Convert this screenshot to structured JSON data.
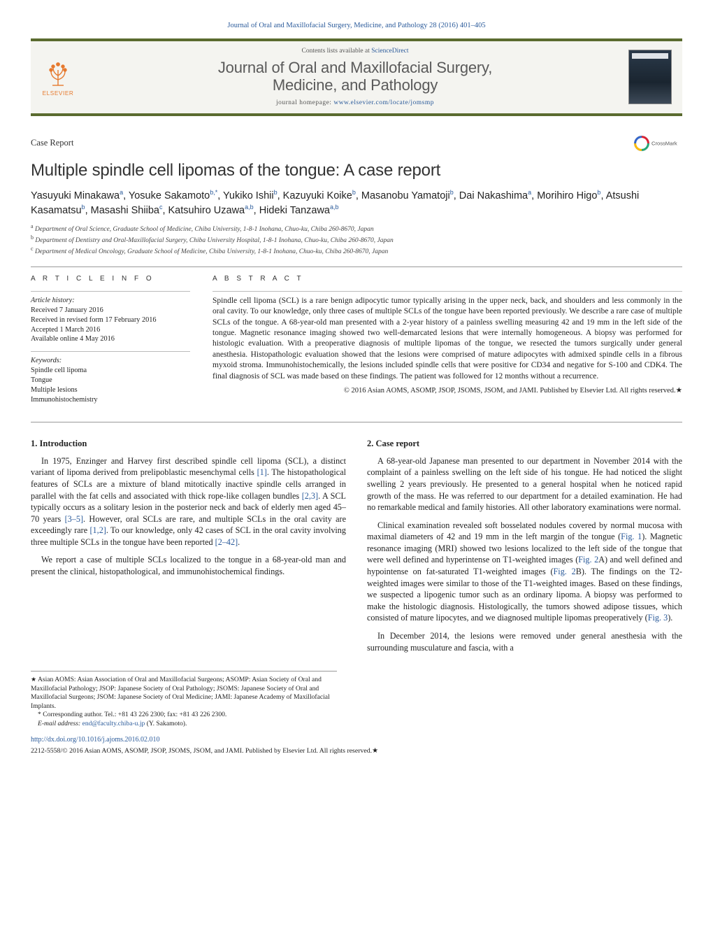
{
  "running_head": "Journal of Oral and Maxillofacial Surgery, Medicine, and Pathology 28 (2016) 401–405",
  "masthead": {
    "contents_prefix": "Contents lists available at ",
    "contents_link": "ScienceDirect",
    "journal_name_1": "Journal of Oral and Maxillofacial Surgery,",
    "journal_name_2": "Medicine, and Pathology",
    "homepage_prefix": "journal homepage: ",
    "homepage_url": "www.elsevier.com/locate/jomsmp",
    "elsevier": "ELSEVIER"
  },
  "article_type": "Case Report",
  "crossmark": "CrossMark",
  "title": "Multiple spindle cell lipomas of the tongue: A case report",
  "authors_html": "Yasuyuki Minakawa<sup>a</sup>, Yosuke Sakamoto<sup>b,*</sup>, Yukiko Ishii<sup>b</sup>, Kazuyuki Koike<sup>b</sup>, Masanobu Yamatoji<sup>b</sup>, Dai Nakashima<sup>a</sup>, Morihiro Higo<sup>b</sup>, Atsushi Kasamatsu<sup>b</sup>, Masashi Shiiba<sup>c</sup>, Katsuhiro Uzawa<sup>a,b</sup>, Hideki Tanzawa<sup>a,b</sup>",
  "affiliations": {
    "a": "Department of Oral Science, Graduate School of Medicine, Chiba University, 1-8-1 Inohana, Chuo-ku, Chiba 260-8670, Japan",
    "b": "Department of Dentistry and Oral-Maxillofacial Surgery, Chiba University Hospital, 1-8-1 Inohana, Chuo-ku, Chiba 260-8670, Japan",
    "c": "Department of Medical Oncology, Graduate School of Medicine, Chiba University, 1-8-1 Inohana, Chuo-ku, Chiba 260-8670, Japan"
  },
  "info": {
    "head": "A R T I C L E   I N F O",
    "history_label": "Article history:",
    "received": "Received 7 January 2016",
    "revised": "Received in revised form 17 February 2016",
    "accepted": "Accepted 1 March 2016",
    "online": "Available online 4 May 2016",
    "keywords_label": "Keywords:",
    "keywords": [
      "Spindle cell lipoma",
      "Tongue",
      "Multiple lesions",
      "Immunohistochemistry"
    ]
  },
  "abstract": {
    "head": "A B S T R A C T",
    "body": "Spindle cell lipoma (SCL) is a rare benign adipocytic tumor typically arising in the upper neck, back, and shoulders and less commonly in the oral cavity. To our knowledge, only three cases of multiple SCLs of the tongue have been reported previously. We describe a rare case of multiple SCLs of the tongue. A 68-year-old man presented with a 2-year history of a painless swelling measuring 42 and 19 mm in the left side of the tongue. Magnetic resonance imaging showed two well-demarcated lesions that were internally homogeneous. A biopsy was performed for histologic evaluation. With a preoperative diagnosis of multiple lipomas of the tongue, we resected the tumors surgically under general anesthesia. Histopathologic evaluation showed that the lesions were comprised of mature adipocytes with admixed spindle cells in a fibrous myxoid stroma. Immunohistochemically, the lesions included spindle cells that were positive for CD34 and negative for S-100 and CDK4. The final diagnosis of SCL was made based on these findings. The patient was followed for 12 months without a recurrence.",
    "copyright": "© 2016 Asian AOMS, ASOMP, JSOP, JSOMS, JSOM, and JAMI. Published by Elsevier Ltd. All rights reserved.★"
  },
  "sections": {
    "intro_head": "1.  Introduction",
    "intro_p1_a": "In 1975, Enzinger and Harvey first described spindle cell lipoma (SCL), a distinct variant of lipoma derived from prelipoblastic mesenchymal cells ",
    "intro_cite1": "[1]",
    "intro_p1_b": ". The histopathological features of SCLs are a mixture of bland mitotically inactive spindle cells arranged in parallel with the fat cells and associated with thick rope-like collagen bundles ",
    "intro_cite2": "[2,3]",
    "intro_p1_c": ". A SCL typically occurs as a solitary lesion in the posterior neck and back of elderly men aged 45–70 years ",
    "intro_cite3": "[3–5]",
    "intro_p1_d": ". However, oral SCLs are rare, and multiple SCLs in the oral cavity are exceedingly rare ",
    "intro_cite4": "[1,2]",
    "intro_p1_e": ". To our knowledge, only 42 cases of SCL in the oral cavity involving three multiple SCLs in the tongue have been reported ",
    "intro_cite5": "[2–42]",
    "intro_p1_f": ".",
    "intro_p2": "We report a case of multiple SCLs localized to the tongue in a 68-year-old man and present the clinical, histopathological, and immunohistochemical findings.",
    "case_head": "2.  Case report",
    "case_p1": "A 68-year-old Japanese man presented to our department in November 2014 with the complaint of a painless swelling on the left side of his tongue. He had noticed the slight swelling 2 years previously. He presented to a general hospital when he noticed rapid growth of the mass. He was referred to our department for a detailed examination. He had no remarkable medical and family histories. All other laboratory examinations were normal.",
    "case_p2_a": "Clinical examination revealed soft bosselated nodules covered by normal mucosa with maximal diameters of 42 and 19 mm in the left margin of the tongue (",
    "case_fig1": "Fig. 1",
    "case_p2_b": "). Magnetic resonance imaging (MRI) showed two lesions localized to the left side of the tongue that were well defined and hyperintense on T1-weighted images (",
    "case_fig2a": "Fig. 2",
    "case_p2_c": "A) and well defined and hypointense on fat-saturated T1-weighted images (",
    "case_fig2b": "Fig. 2",
    "case_p2_d": "B). The findings on the T2-weighted images were similar to those of the T1-weighted images. Based on these findings, we suspected a lipogenic tumor such as an ordinary lipoma. A biopsy was performed to make the histologic diagnosis. Histologically, the tumors showed adipose tissues, which consisted of mature lipocytes, and we diagnosed multiple lipomas preoperatively (",
    "case_fig3": "Fig. 3",
    "case_p2_e": ").",
    "case_p3": "In December 2014, the lesions were removed under general anesthesia with the surrounding musculature and fascia, with a"
  },
  "footnotes": {
    "fn1": "Asian AOMS: Asian Association of Oral and Maxillofacial Surgeons; ASOMP: Asian Society of Oral and Maxillofacial Pathology; JSOP: Japanese Society of Oral Pathology; JSOMS: Japanese Society of Oral and Maxillofacial Surgeons; JSOM: Japanese Society of Oral Medicine; JAMI: Japanese Academy of Maxillofacial Implants.",
    "fn2_a": "Corresponding author. Tel.: +81 43 226 2300; fax: +81 43 226 2300.",
    "fn3_label": "E-mail address: ",
    "fn3_email": "end@faculty.chiba-u.jp",
    "fn3_tail": " (Y. Sakamoto)."
  },
  "footer": {
    "doi": "http://dx.doi.org/10.1016/j.ajoms.2016.02.010",
    "copyright": "2212-5558/© 2016 Asian AOMS, ASOMP, JSOP, JSOMS, JSOM, and JAMI. Published by Elsevier Ltd. All rights reserved.★"
  },
  "colors": {
    "link": "#2a5a9a",
    "rule": "#999999",
    "olive": "#5a6b2f",
    "orange": "#e6792e"
  }
}
